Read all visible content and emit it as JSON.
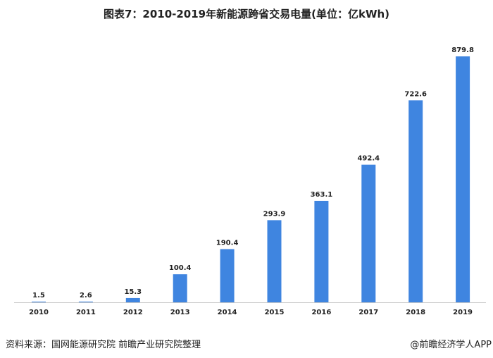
{
  "chart_data": {
    "type": "bar",
    "title": "图表7：2010-2019年新能源跨省交易电量(单位：亿kWh)",
    "categories": [
      "2010",
      "2011",
      "2012",
      "2013",
      "2014",
      "2015",
      "2016",
      "2017",
      "2018",
      "2019"
    ],
    "values": [
      1.5,
      2.6,
      15.3,
      100.4,
      190.4,
      293.9,
      363.1,
      492.4,
      722.6,
      879.8
    ],
    "data_labels": [
      "1.5",
      "2.6",
      "15.3",
      "100.4",
      "190.4",
      "293.9",
      "363.1",
      "492.4",
      "722.6",
      "879.8"
    ],
    "xlabel": "",
    "ylabel": "",
    "ylim": [
      0,
      879.8
    ],
    "grid": false,
    "bar_color": "#3f85e0",
    "axis_color": "#c8c8c8"
  },
  "footer": {
    "source": "资料来源：国网能源研究院 前瞻产业研究院整理",
    "credit": "@前瞻经济学人APP"
  }
}
